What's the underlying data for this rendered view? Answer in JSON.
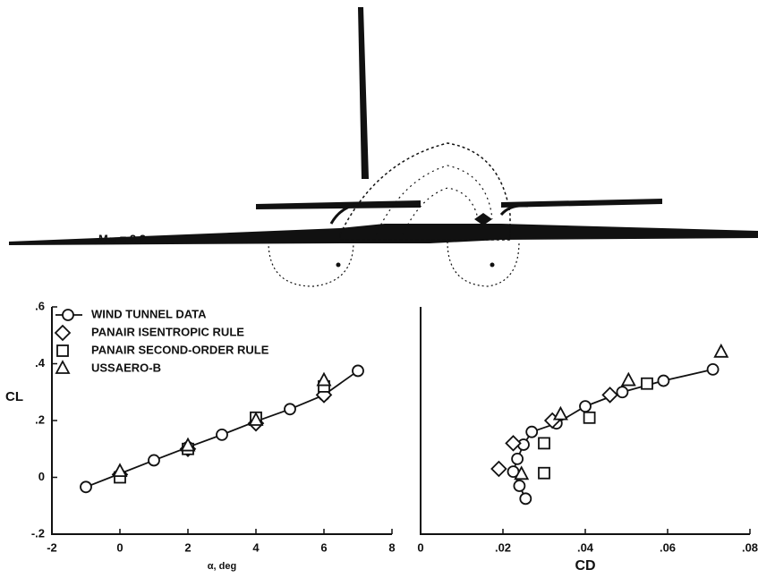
{
  "annotation": "M∞ = 2.2",
  "chart_data": [
    {
      "type": "scatter",
      "xlabel": "α, deg",
      "ylabel": "CL",
      "xlim": [
        -2,
        8
      ],
      "xticks": [
        -2,
        0,
        2,
        4,
        6,
        8
      ],
      "ylim": [
        -0.2,
        0.6
      ],
      "yticks": [
        {
          "value": -0.2,
          "label": "-.2"
        },
        {
          "value": 0,
          "label": "0"
        },
        {
          "value": 0.2,
          "label": ".2"
        },
        {
          "value": 0.4,
          "label": ".4"
        },
        {
          "value": 0.6,
          "label": ".6"
        }
      ],
      "legend": "upper left",
      "series": [
        {
          "name": "WIND TUNNEL DATA",
          "marker": "circle",
          "line": true,
          "color": "#111",
          "x": [
            -1,
            1,
            2,
            3,
            4,
            5,
            6,
            7
          ],
          "values": [
            -0.034,
            0.06,
            0.106,
            0.15,
            0.197,
            0.24,
            0.29,
            0.375
          ]
        },
        {
          "name": "PANAIR ISENTROPIC RULE",
          "marker": "diamond",
          "color": "#111",
          "x": [
            0,
            2,
            4,
            6
          ],
          "values": [
            0.01,
            0.1,
            0.19,
            0.29
          ]
        },
        {
          "name": "PANAIR SECOND-ORDER RULE",
          "marker": "square",
          "color": "#111",
          "x": [
            0,
            2,
            4,
            6
          ],
          "values": [
            0.0,
            0.1,
            0.21,
            0.32
          ]
        },
        {
          "name": "USSAERO-B",
          "marker": "triangle",
          "color": "#111",
          "x": [
            0,
            2,
            4,
            6
          ],
          "values": [
            0.02,
            0.11,
            0.2,
            0.34
          ]
        }
      ]
    },
    {
      "type": "scatter",
      "xlabel": "CD",
      "xlim": [
        0,
        0.08
      ],
      "xticks": [
        0,
        {
          "value": 0.02,
          "label": ".02"
        },
        {
          "value": 0.04,
          "label": ".04"
        },
        {
          "value": 0.06,
          "label": ".06"
        },
        {
          "value": 0.08,
          "label": ".08"
        }
      ],
      "ylim": [
        -0.2,
        0.6
      ],
      "series": [
        {
          "marker": "circle",
          "line": true,
          "color": "#111",
          "x": [
            0.0255,
            0.024,
            0.0225,
            0.0235,
            0.025,
            0.027,
            0.033,
            0.04,
            0.049,
            0.059,
            0.071
          ],
          "values": [
            -0.075,
            -0.03,
            0.02,
            0.065,
            0.115,
            0.16,
            0.19,
            0.25,
            0.3,
            0.34,
            0.38
          ]
        },
        {
          "marker": "diamond",
          "color": "#111",
          "x": [
            0.019,
            0.0225,
            0.032,
            0.046
          ],
          "values": [
            0.03,
            0.12,
            0.2,
            0.29
          ]
        },
        {
          "marker": "square",
          "color": "#111",
          "x": [
            0.03,
            0.03,
            0.041,
            0.055
          ],
          "values": [
            0.015,
            0.12,
            0.21,
            0.33
          ]
        },
        {
          "marker": "triangle",
          "color": "#111",
          "x": [
            0.0245,
            0.034,
            0.0505,
            0.073
          ],
          "values": [
            0.01,
            0.22,
            0.34,
            0.44
          ]
        }
      ]
    }
  ]
}
